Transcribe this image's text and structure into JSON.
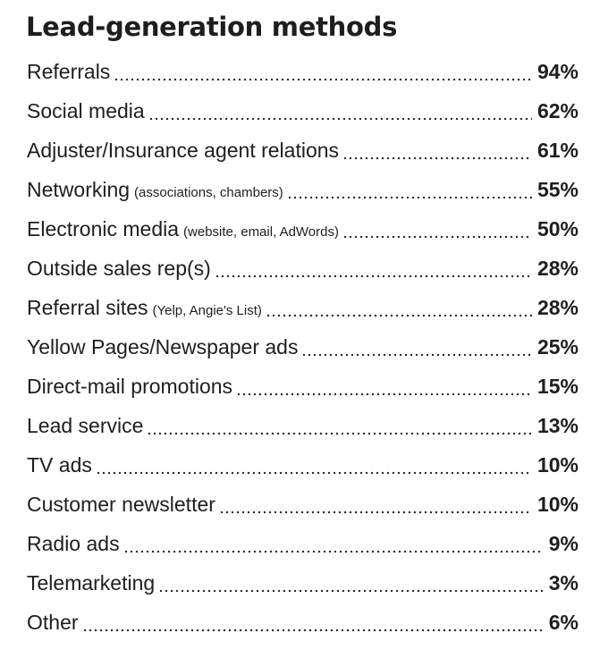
{
  "title": "Lead-generation methods",
  "rows": [
    {
      "label": "Referrals",
      "note": "",
      "value": "94%"
    },
    {
      "label": "Social media",
      "note": "",
      "value": "62%"
    },
    {
      "label": "Adjuster/Insurance agent relations",
      "note": "",
      "value": "61%"
    },
    {
      "label": "Networking",
      "note": "(associations, chambers)",
      "value": "55%"
    },
    {
      "label": "Electronic media",
      "note": "(website, email, AdWords)",
      "value": "50%"
    },
    {
      "label": "Outside sales rep(s)",
      "note": "",
      "value": "28%"
    },
    {
      "label": "Referral sites",
      "note": "(Yelp, Angie's List)",
      "value": "28%"
    },
    {
      "label": "Yellow Pages/Newspaper ads",
      "note": "",
      "value": "25%"
    },
    {
      "label": "Direct-mail promotions",
      "note": "",
      "value": "15%"
    },
    {
      "label": "Lead service",
      "note": "",
      "value": "13%"
    },
    {
      "label": "TV ads",
      "note": "",
      "value": "10%"
    },
    {
      "label": "Customer newsletter",
      "note": "",
      "value": "10%"
    },
    {
      "label": "Radio ads",
      "note": "",
      "value": "9%"
    },
    {
      "label": "Telemarketing",
      "note": "",
      "value": "3%"
    },
    {
      "label": "Other",
      "note": "",
      "value": "6%"
    }
  ]
}
